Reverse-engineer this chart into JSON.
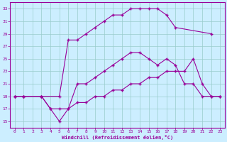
{
  "xlabel": "Windchill (Refroidissement éolien,°C)",
  "background_color": "#cceeff",
  "grid_color": "#99cccc",
  "line_color": "#990099",
  "xlim": [
    -0.5,
    23.5
  ],
  "ylim": [
    14,
    34
  ],
  "yticks": [
    15,
    17,
    19,
    21,
    23,
    25,
    27,
    29,
    31,
    33
  ],
  "xticks": [
    0,
    1,
    2,
    3,
    4,
    5,
    6,
    7,
    8,
    9,
    10,
    11,
    12,
    13,
    14,
    15,
    16,
    17,
    18,
    19,
    20,
    21,
    22,
    23
  ],
  "curve_top_x": [
    0,
    1,
    3,
    5,
    6,
    7,
    8,
    9,
    10,
    11,
    12,
    13,
    14,
    15,
    16,
    17,
    18,
    22
  ],
  "curve_top_y": [
    19,
    19,
    19,
    19,
    28,
    28,
    29,
    30,
    31,
    32,
    32,
    33,
    33,
    33,
    33,
    32,
    30,
    29
  ],
  "curve_mid_x": [
    0,
    1,
    3,
    4,
    5,
    6,
    7,
    8,
    9,
    10,
    11,
    12,
    13,
    14,
    15,
    16,
    17,
    18,
    19,
    20,
    21,
    22,
    23
  ],
  "curve_mid_y": [
    19,
    19,
    19,
    17,
    15,
    17,
    21,
    21,
    22,
    23,
    24,
    25,
    26,
    26,
    25,
    24,
    25,
    24,
    21,
    21,
    19,
    19,
    19
  ],
  "curve_bot_x": [
    0,
    1,
    3,
    4,
    5,
    6,
    7,
    8,
    9,
    10,
    11,
    12,
    13,
    14,
    15,
    16,
    17,
    18,
    19,
    20,
    21,
    22,
    23
  ],
  "curve_bot_y": [
    19,
    19,
    19,
    17,
    17,
    17,
    18,
    18,
    19,
    19,
    20,
    20,
    21,
    21,
    22,
    22,
    23,
    23,
    23,
    25,
    21,
    19,
    19
  ]
}
